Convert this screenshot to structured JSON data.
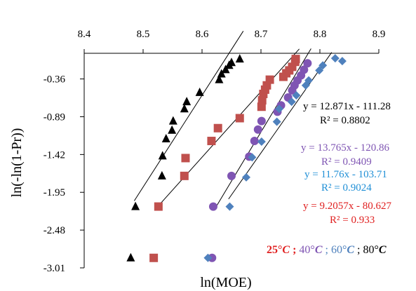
{
  "chart_data": {
    "type": "scatter",
    "title": "",
    "xlabel": "ln(MOE)",
    "ylabel": "ln(-ln(1-Pr))",
    "x_axis_position": "top",
    "xlim": [
      8.4,
      8.9
    ],
    "ylim": [
      -3.01,
      0.0
    ],
    "x_ticks": [
      "8.4",
      "8.5",
      "8.6",
      "8.7",
      "8.8",
      "8.9"
    ],
    "y_ticks": [
      "-0.36",
      "-0.89",
      "-1.42",
      "-1.95",
      "-2.48",
      "-3.01"
    ],
    "grid": false,
    "series": [
      {
        "key": "s80",
        "marker": "triangle",
        "color": "#000000",
        "points": [
          [
            8.479,
            -2.87
          ],
          [
            8.487,
            -2.15
          ],
          [
            8.532,
            -1.72
          ],
          [
            8.533,
            -1.44
          ],
          [
            8.539,
            -1.2
          ],
          [
            8.549,
            -1.08
          ],
          [
            8.551,
            -0.95
          ],
          [
            8.57,
            -0.78
          ],
          [
            8.574,
            -0.68
          ],
          [
            8.596,
            -0.55
          ],
          [
            8.629,
            -0.37
          ],
          [
            8.633,
            -0.29
          ],
          [
            8.64,
            -0.23
          ],
          [
            8.646,
            -0.17
          ],
          [
            8.65,
            -0.13
          ],
          [
            8.664,
            -0.08
          ]
        ],
        "fit": {
          "slope": 12.871,
          "intercept": -111.28,
          "x_range": [
            8.485,
            8.67
          ]
        }
      },
      {
        "key": "s25",
        "marker": "square",
        "color": "#c0504d",
        "points": [
          [
            8.518,
            -2.87
          ],
          [
            8.526,
            -2.15
          ],
          [
            8.57,
            -1.72
          ],
          [
            8.572,
            -1.47
          ],
          [
            8.616,
            -1.23
          ],
          [
            8.627,
            -1.05
          ],
          [
            8.664,
            -0.91
          ],
          [
            8.701,
            -0.75
          ],
          [
            8.702,
            -0.66
          ],
          [
            8.704,
            -0.57
          ],
          [
            8.707,
            -0.51
          ],
          [
            8.71,
            -0.45
          ],
          [
            8.715,
            -0.37
          ],
          [
            8.738,
            -0.33
          ],
          [
            8.743,
            -0.28
          ],
          [
            8.748,
            -0.24
          ],
          [
            8.753,
            -0.19
          ],
          [
            8.758,
            -0.12
          ],
          [
            8.759,
            -0.08
          ]
        ],
        "fit": {
          "slope": 9.2057,
          "intercept": -80.627,
          "x_range": [
            8.525,
            8.765
          ]
        }
      },
      {
        "key": "s40",
        "marker": "circle",
        "color": "#7f55b3",
        "points": [
          [
            8.617,
            -2.87
          ],
          [
            8.619,
            -2.15
          ],
          [
            8.65,
            -1.72
          ],
          [
            8.68,
            -1.45
          ],
          [
            8.689,
            -1.23
          ],
          [
            8.695,
            -1.07
          ],
          [
            8.701,
            -0.95
          ],
          [
            8.728,
            -0.82
          ],
          [
            8.734,
            -0.73
          ],
          [
            8.746,
            -0.62
          ],
          [
            8.753,
            -0.52
          ],
          [
            8.757,
            -0.45
          ],
          [
            8.762,
            -0.38
          ],
          [
            8.768,
            -0.31
          ],
          [
            8.773,
            -0.23
          ],
          [
            8.779,
            -0.14
          ]
        ],
        "fit": {
          "slope": 13.765,
          "intercept": -120.86,
          "x_range": [
            8.62,
            8.785
          ]
        }
      },
      {
        "key": "s60",
        "marker": "diamond",
        "color": "#4f81bd",
        "points": [
          [
            8.61,
            -2.87
          ],
          [
            8.647,
            -2.15
          ],
          [
            8.675,
            -1.74
          ],
          [
            8.685,
            -1.46
          ],
          [
            8.701,
            -1.24
          ],
          [
            8.727,
            -0.96
          ],
          [
            8.731,
            -0.78
          ],
          [
            8.752,
            -0.68
          ],
          [
            8.76,
            -0.59
          ],
          [
            8.776,
            -0.45
          ],
          [
            8.781,
            -0.38
          ],
          [
            8.799,
            -0.24
          ],
          [
            8.805,
            -0.17
          ],
          [
            8.826,
            -0.07
          ],
          [
            8.838,
            -0.11
          ]
        ],
        "fit": {
          "slope": 11.76,
          "intercept": -103.71,
          "x_range": [
            8.645,
            8.82
          ]
        }
      }
    ],
    "annotations": [
      {
        "series": "s80",
        "color": "#000000",
        "equation": "y = 12.871x - 111.28",
        "r2": "R² = 0.8802"
      },
      {
        "series": "s40",
        "color": "#7f55b3",
        "equation": "y = 13.765x - 120.86",
        "r2": "R² = 0.9409"
      },
      {
        "series": "s60",
        "color": "#1f8fd6",
        "equation": "y = 11.76x - 103.71",
        "r2": "R² = 0.9024"
      },
      {
        "series": "s25",
        "color": "#e02020",
        "equation": "y = 9.2057x - 80.627",
        "r2": "R² = 0.933"
      }
    ],
    "legend_text": [
      {
        "text": "25°",
        "color": "#e02020",
        "italic": false,
        "bold": true
      },
      {
        "text": "C",
        "color": "#e02020",
        "italic": true,
        "bold": true
      },
      {
        "text": " ; ",
        "color": "#e02020",
        "italic": false,
        "bold": true
      },
      {
        "text": "40°",
        "color": "#7f55b3",
        "italic": false,
        "bold": false
      },
      {
        "text": "C",
        "color": "#7f55b3",
        "italic": true,
        "bold": true
      },
      {
        "text": "  ; ",
        "color": "#4f81bd",
        "italic": false,
        "bold": false
      },
      {
        "text": "60°",
        "color": "#4f81bd",
        "italic": false,
        "bold": false
      },
      {
        "text": "C",
        "color": "#4f81bd",
        "italic": true,
        "bold": true
      },
      {
        "text": " ; ",
        "color": "#000000",
        "italic": false,
        "bold": false
      },
      {
        "text": "80°",
        "color": "#000000",
        "italic": false,
        "bold": false
      },
      {
        "text": "C",
        "color": "#000000",
        "italic": true,
        "bold": true
      }
    ]
  }
}
